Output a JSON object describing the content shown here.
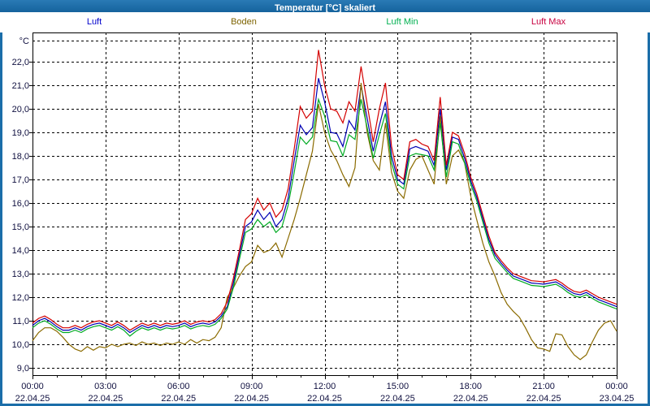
{
  "window": {
    "title": "Temperatur [°C] skaliert"
  },
  "legend": {
    "items": [
      {
        "label": "Luft",
        "color": "#0000cc"
      },
      {
        "label": "Boden",
        "color": "#7d6300"
      },
      {
        "label": "Luft Min",
        "color": "#00b050"
      },
      {
        "label": "Luft Max",
        "color": "#c80040"
      }
    ]
  },
  "chart_data": {
    "type": "line",
    "title": "Temperatur [°C] skaliert",
    "grid": "dashed",
    "legend_position": "top",
    "sample_interval_minutes": 15,
    "y_axis": {
      "unit": "°C",
      "min": 9,
      "max": 22,
      "step": 1,
      "ticks": [
        {
          "v": 22,
          "label": "22,0"
        },
        {
          "v": 21,
          "label": "21,0"
        },
        {
          "v": 20,
          "label": "20,0"
        },
        {
          "v": 19,
          "label": "19,0"
        },
        {
          "v": 18,
          "label": "18,0"
        },
        {
          "v": 17,
          "label": "17,0"
        },
        {
          "v": 16,
          "label": "16,0"
        },
        {
          "v": 15,
          "label": "15,0"
        },
        {
          "v": 14,
          "label": "14,0"
        },
        {
          "v": 13,
          "label": "13,0"
        },
        {
          "v": 12,
          "label": "12,0"
        },
        {
          "v": 11,
          "label": "11,0"
        },
        {
          "v": 10,
          "label": "10,0"
        },
        {
          "v": 9,
          "label": "9,0"
        }
      ]
    },
    "x_axis": {
      "start_hour": 0,
      "end_hour": 24,
      "ticks": [
        {
          "t": 0,
          "time": "00:00",
          "date": "22.04.25"
        },
        {
          "t": 3,
          "time": "03:00",
          "date": "22.04.25"
        },
        {
          "t": 6,
          "time": "06:00",
          "date": "22.04.25"
        },
        {
          "t": 9,
          "time": "09:00",
          "date": "22.04.25"
        },
        {
          "t": 12,
          "time": "12:00",
          "date": "22.04.25"
        },
        {
          "t": 15,
          "time": "15:00",
          "date": "22.04.25"
        },
        {
          "t": 18,
          "time": "18:00",
          "date": "22.04.25"
        },
        {
          "t": 21,
          "time": "21:00",
          "date": "22.04.25"
        },
        {
          "t": 24,
          "time": "00:00",
          "date": "23.04.25"
        }
      ]
    },
    "series": [
      {
        "name": "Luft",
        "color": "#0000b4",
        "values": [
          10.8,
          11.0,
          11.1,
          10.95,
          10.75,
          10.6,
          10.6,
          10.7,
          10.6,
          10.75,
          10.85,
          10.9,
          10.8,
          10.7,
          10.85,
          10.7,
          10.5,
          10.65,
          10.8,
          10.7,
          10.8,
          10.7,
          10.8,
          10.75,
          10.8,
          10.9,
          10.75,
          10.85,
          10.9,
          10.85,
          10.95,
          11.2,
          11.6,
          12.6,
          13.8,
          15.0,
          15.2,
          15.7,
          15.3,
          15.6,
          15.0,
          15.3,
          16.2,
          17.8,
          19.3,
          18.9,
          19.2,
          21.3,
          20.3,
          19.0,
          18.95,
          18.4,
          19.5,
          19.1,
          21.0,
          19.6,
          18.2,
          19.3,
          20.3,
          18.0,
          17.0,
          16.8,
          18.3,
          18.4,
          18.3,
          18.2,
          17.6,
          20.0,
          17.4,
          18.8,
          18.7,
          17.9,
          16.95,
          16.25,
          15.35,
          14.45,
          13.8,
          13.45,
          13.15,
          12.9,
          12.8,
          12.7,
          12.6,
          12.58,
          12.55,
          12.6,
          12.65,
          12.5,
          12.3,
          12.15,
          12.1,
          12.2,
          12.05,
          11.9,
          11.8,
          11.7,
          11.6
        ]
      },
      {
        "name": "Boden",
        "color": "#8b6b00",
        "values": [
          10.15,
          10.5,
          10.7,
          10.7,
          10.55,
          10.3,
          10.0,
          9.8,
          9.7,
          9.9,
          9.75,
          9.9,
          9.85,
          10.0,
          9.9,
          10.0,
          10.05,
          9.95,
          10.1,
          10.0,
          10.05,
          9.95,
          10.05,
          10.0,
          10.1,
          10.0,
          10.2,
          10.05,
          10.2,
          10.15,
          10.3,
          10.7,
          12.0,
          12.4,
          12.9,
          13.3,
          13.5,
          14.2,
          13.9,
          14.0,
          14.3,
          13.7,
          14.5,
          15.3,
          16.2,
          17.2,
          18.2,
          20.2,
          19.0,
          18.25,
          17.8,
          17.2,
          16.7,
          17.5,
          21.1,
          19.0,
          17.8,
          17.4,
          19.4,
          17.3,
          16.5,
          16.2,
          17.4,
          17.85,
          18.0,
          17.4,
          16.8,
          19.7,
          16.8,
          18.0,
          18.25,
          17.7,
          16.3,
          15.3,
          14.3,
          13.5,
          12.9,
          12.2,
          11.7,
          11.4,
          11.15,
          10.7,
          10.2,
          9.85,
          9.8,
          9.7,
          10.45,
          10.4,
          9.9,
          9.55,
          9.35,
          9.55,
          10.1,
          10.6,
          10.9,
          11.0,
          10.55
        ]
      },
      {
        "name": "Luft Min",
        "color": "#00aa22",
        "values": [
          10.7,
          10.9,
          11.0,
          10.85,
          10.65,
          10.5,
          10.5,
          10.6,
          10.5,
          10.65,
          10.75,
          10.8,
          10.7,
          10.6,
          10.75,
          10.6,
          10.35,
          10.55,
          10.7,
          10.6,
          10.7,
          10.6,
          10.7,
          10.65,
          10.7,
          10.8,
          10.65,
          10.75,
          10.8,
          10.75,
          10.85,
          11.1,
          11.5,
          12.4,
          13.6,
          14.75,
          14.9,
          15.3,
          15.0,
          15.2,
          14.75,
          15.0,
          15.9,
          17.3,
          18.8,
          18.5,
          18.8,
          20.4,
          19.7,
          18.65,
          18.6,
          18.0,
          18.9,
          18.7,
          20.4,
          19.2,
          17.9,
          18.9,
          19.8,
          17.7,
          16.8,
          16.6,
          18.0,
          18.1,
          18.05,
          18.0,
          17.4,
          19.4,
          17.1,
          18.6,
          18.5,
          17.7,
          16.8,
          16.1,
          15.2,
          14.3,
          13.65,
          13.35,
          13.05,
          12.8,
          12.7,
          12.6,
          12.5,
          12.48,
          12.45,
          12.5,
          12.55,
          12.4,
          12.2,
          12.05,
          12.0,
          12.1,
          11.95,
          11.8,
          11.7,
          11.6,
          11.5
        ]
      },
      {
        "name": "Luft Max",
        "color": "#d40000",
        "values": [
          10.9,
          11.1,
          11.2,
          11.05,
          10.85,
          10.7,
          10.7,
          10.8,
          10.7,
          10.85,
          10.95,
          11.0,
          10.9,
          10.8,
          10.95,
          10.8,
          10.6,
          10.75,
          10.9,
          10.8,
          10.9,
          10.8,
          10.9,
          10.85,
          10.9,
          11.0,
          10.85,
          10.95,
          11.0,
          10.95,
          11.05,
          11.3,
          11.8,
          12.8,
          14.0,
          15.3,
          15.55,
          16.2,
          15.7,
          16.0,
          15.4,
          15.7,
          16.6,
          18.3,
          20.1,
          19.6,
          19.9,
          22.5,
          21.0,
          20.0,
          19.9,
          19.4,
          20.3,
          19.9,
          21.8,
          20.2,
          18.6,
          20.0,
          21.1,
          18.4,
          17.2,
          17.0,
          18.6,
          18.7,
          18.5,
          18.4,
          17.8,
          20.5,
          17.6,
          19.0,
          18.85,
          18.1,
          17.1,
          16.4,
          15.5,
          14.6,
          13.9,
          13.55,
          13.25,
          13.0,
          12.9,
          12.8,
          12.7,
          12.68,
          12.65,
          12.7,
          12.75,
          12.6,
          12.4,
          12.25,
          12.2,
          12.3,
          12.15,
          12.0,
          11.9,
          11.8,
          11.7
        ]
      }
    ]
  }
}
